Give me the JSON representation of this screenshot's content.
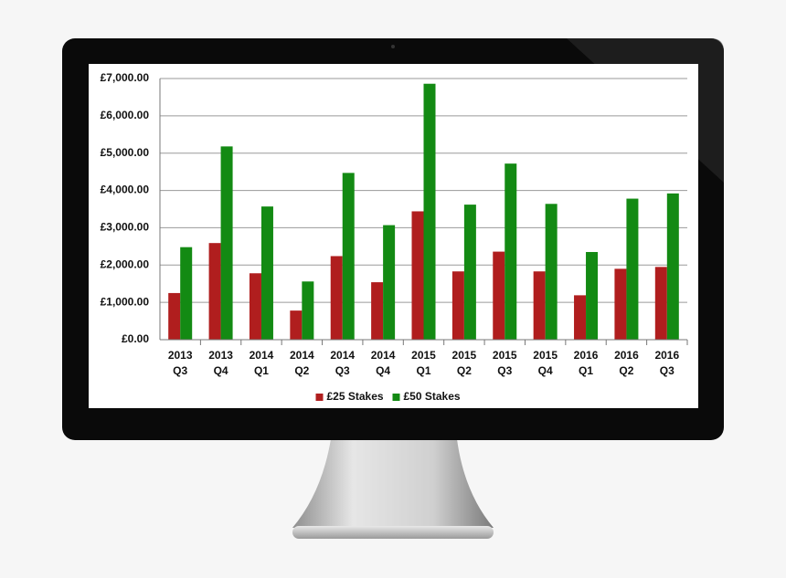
{
  "chart_data": {
    "type": "bar",
    "categories": [
      [
        "2013",
        "Q3"
      ],
      [
        "2013",
        "Q4"
      ],
      [
        "2014",
        "Q1"
      ],
      [
        "2014",
        "Q2"
      ],
      [
        "2014",
        "Q3"
      ],
      [
        "2014",
        "Q4"
      ],
      [
        "2015",
        "Q1"
      ],
      [
        "2015",
        "Q2"
      ],
      [
        "2015",
        "Q3"
      ],
      [
        "2015",
        "Q4"
      ],
      [
        "2016",
        "Q1"
      ],
      [
        "2016",
        "Q2"
      ],
      [
        "2016",
        "Q3"
      ]
    ],
    "series": [
      {
        "name": "£25 Stakes",
        "color": "#b01e1e",
        "values": [
          1250,
          2590,
          1780,
          780,
          2240,
          1540,
          3440,
          1830,
          2360,
          1830,
          1190,
          1900,
          1950
        ]
      },
      {
        "name": "£50 Stakes",
        "color": "#138a13",
        "values": [
          2480,
          5180,
          3570,
          1560,
          4470,
          3070,
          6860,
          3620,
          4720,
          3640,
          2350,
          3780,
          3920
        ]
      }
    ],
    "ylim": [
      0,
      7000
    ],
    "yticks": [
      {
        "value": 0,
        "label": "£0.00"
      },
      {
        "value": 1000,
        "label": "£1,000.00"
      },
      {
        "value": 2000,
        "label": "£2,000.00"
      },
      {
        "value": 3000,
        "label": "£3,000.00"
      },
      {
        "value": 4000,
        "label": "£4,000.00"
      },
      {
        "value": 5000,
        "label": "£5,000.00"
      },
      {
        "value": 6000,
        "label": "£6,000.00"
      },
      {
        "value": 7000,
        "label": "£7,000.00"
      }
    ],
    "grid": true,
    "legend": "bottom"
  }
}
